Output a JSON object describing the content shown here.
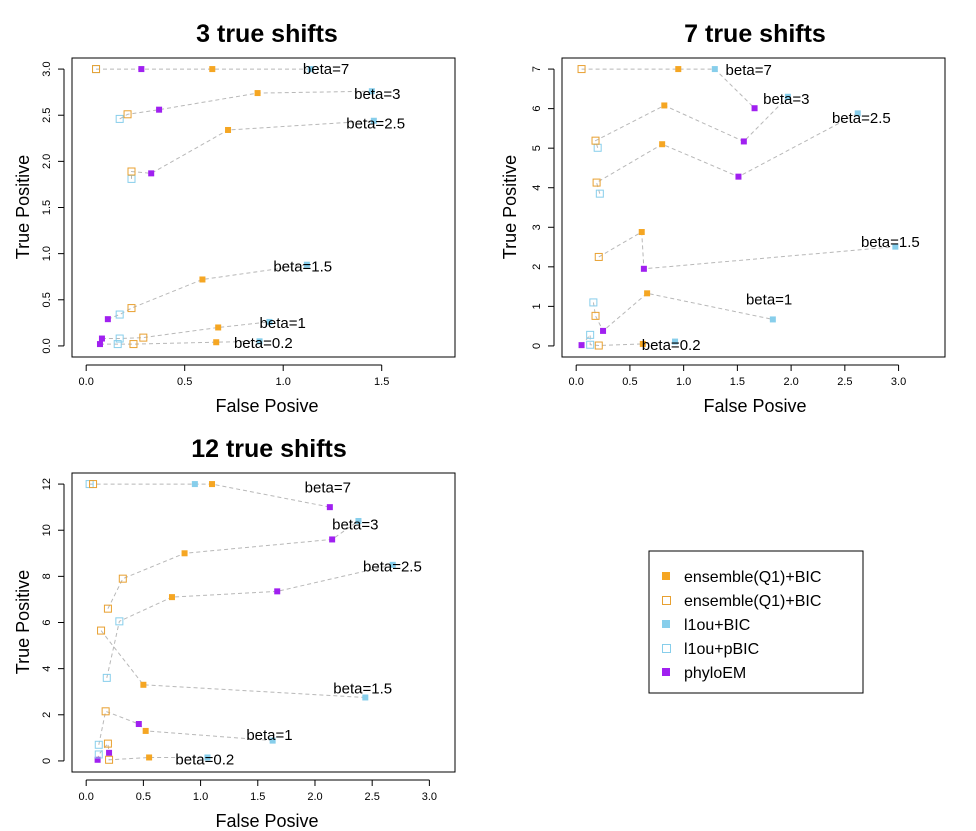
{
  "legend": {
    "entries": [
      {
        "label": "ensemble(Q1)+BIC",
        "marker": "filled",
        "color": "#F5A623"
      },
      {
        "label": "ensemble(Q1)+BIC",
        "marker": "open",
        "color": "#E8A030"
      },
      {
        "label": "l1ou+BIC",
        "marker": "filled",
        "color": "#87CEEB"
      },
      {
        "label": "l1ou+pBIC",
        "marker": "open",
        "color": "#87CEEB"
      },
      {
        "label": "phyloEM",
        "marker": "filled",
        "color": "#A020F0"
      }
    ]
  },
  "chart_data": [
    {
      "type": "scatter",
      "title": "3  true shifts",
      "xlabel": "False Posive",
      "ylabel": "True Positive",
      "xlim": [
        0,
        1.8
      ],
      "ylim": [
        0,
        3
      ],
      "xticks": [
        "0.0",
        "0.5",
        "1.0",
        "1.5"
      ],
      "xtick_values": [
        0,
        0.5,
        1.0,
        1.5
      ],
      "yticks": [
        "0.0",
        "0.5",
        "1.0",
        "1.5",
        "2.0",
        "2.5",
        "3.0"
      ],
      "ytick_values": [
        0,
        0.5,
        1.0,
        1.5,
        2.0,
        2.5,
        3.0
      ],
      "series": [
        {
          "name": "beta=7",
          "label_at": [
            1.1,
            3.0
          ],
          "points": [
            {
              "x": 0.05,
              "y": 3.0,
              "m": "l1ou_pbic"
            },
            {
              "x": 0.05,
              "y": 3.0,
              "m": "ens_open"
            },
            {
              "x": 0.28,
              "y": 3.0,
              "m": "phyloem"
            },
            {
              "x": 0.64,
              "y": 3.0,
              "m": "ens_filled"
            },
            {
              "x": 1.14,
              "y": 3.0,
              "m": "l1ou_bic"
            }
          ]
        },
        {
          "name": "beta=3",
          "label_at": [
            1.36,
            2.73
          ],
          "points": [
            {
              "x": 0.17,
              "y": 2.46,
              "m": "l1ou_pbic"
            },
            {
              "x": 0.21,
              "y": 2.51,
              "m": "ens_open"
            },
            {
              "x": 0.37,
              "y": 2.56,
              "m": "phyloem"
            },
            {
              "x": 0.87,
              "y": 2.74,
              "m": "ens_filled"
            },
            {
              "x": 1.45,
              "y": 2.76,
              "m": "l1ou_bic"
            }
          ]
        },
        {
          "name": "beta=2.5",
          "label_at": [
            1.32,
            2.41
          ],
          "points": [
            {
              "x": 0.23,
              "y": 1.81,
              "m": "l1ou_pbic"
            },
            {
              "x": 0.23,
              "y": 1.89,
              "m": "ens_open"
            },
            {
              "x": 0.33,
              "y": 1.87,
              "m": "phyloem"
            },
            {
              "x": 0.72,
              "y": 2.34,
              "m": "ens_filled"
            },
            {
              "x": 1.46,
              "y": 2.44,
              "m": "l1ou_bic"
            }
          ]
        },
        {
          "name": "beta=1.5",
          "label_at": [
            0.95,
            0.86
          ],
          "points": [
            {
              "x": 0.11,
              "y": 0.29,
              "m": "phyloem"
            },
            {
              "x": 0.17,
              "y": 0.34,
              "m": "l1ou_pbic"
            },
            {
              "x": 0.23,
              "y": 0.41,
              "m": "ens_open"
            },
            {
              "x": 0.59,
              "y": 0.72,
              "m": "ens_filled"
            },
            {
              "x": 1.12,
              "y": 0.88,
              "m": "l1ou_bic"
            }
          ]
        },
        {
          "name": "beta=1",
          "label_at": [
            0.88,
            0.25
          ],
          "points": [
            {
              "x": 0.08,
              "y": 0.08,
              "m": "phyloem"
            },
            {
              "x": 0.17,
              "y": 0.08,
              "m": "l1ou_pbic"
            },
            {
              "x": 0.29,
              "y": 0.09,
              "m": "ens_open"
            },
            {
              "x": 0.67,
              "y": 0.2,
              "m": "ens_filled"
            },
            {
              "x": 0.93,
              "y": 0.26,
              "m": "l1ou_bic"
            }
          ]
        },
        {
          "name": "beta=0.2",
          "label_at": [
            0.75,
            0.03
          ],
          "points": [
            {
              "x": 0.07,
              "y": 0.02,
              "m": "phyloem"
            },
            {
              "x": 0.16,
              "y": 0.02,
              "m": "l1ou_pbic"
            },
            {
              "x": 0.24,
              "y": 0.02,
              "m": "ens_open"
            },
            {
              "x": 0.66,
              "y": 0.04,
              "m": "ens_filled"
            },
            {
              "x": 0.88,
              "y": 0.05,
              "m": "l1ou_bic"
            }
          ]
        }
      ]
    },
    {
      "type": "scatter",
      "title": "7  true shifts",
      "xlabel": "False Posive",
      "ylabel": "True Positive",
      "xlim": [
        0,
        3.3
      ],
      "ylim": [
        0,
        7
      ],
      "xticks": [
        "0.0",
        "0.5",
        "1.0",
        "1.5",
        "2.0",
        "2.5",
        "3.0"
      ],
      "xtick_values": [
        0,
        0.5,
        1.0,
        1.5,
        2.0,
        2.5,
        3.0
      ],
      "yticks": [
        "0",
        "1",
        "2",
        "3",
        "4",
        "5",
        "6",
        "7"
      ],
      "ytick_values": [
        0,
        1,
        2,
        3,
        4,
        5,
        6,
        7
      ],
      "series": [
        {
          "name": "beta=7",
          "label_at": [
            1.39,
            6.98
          ],
          "points": [
            {
              "x": 0.05,
              "y": 7.0,
              "m": "ens_open"
            },
            {
              "x": 0.95,
              "y": 7.0,
              "m": "ens_filled"
            },
            {
              "x": 1.29,
              "y": 7.0,
              "m": "l1ou_bic"
            },
            {
              "x": 1.66,
              "y": 6.01,
              "m": "phyloem"
            }
          ]
        },
        {
          "name": "beta=3",
          "label_at": [
            1.74,
            6.24
          ],
          "points": [
            {
              "x": 0.2,
              "y": 5.01,
              "m": "l1ou_pbic"
            },
            {
              "x": 0.18,
              "y": 5.19,
              "m": "ens_open"
            },
            {
              "x": 0.82,
              "y": 6.08,
              "m": "ens_filled"
            },
            {
              "x": 1.56,
              "y": 5.17,
              "m": "phyloem"
            },
            {
              "x": 1.97,
              "y": 6.3,
              "m": "l1ou_bic"
            }
          ]
        },
        {
          "name": "beta=2.5",
          "label_at": [
            2.38,
            5.76
          ],
          "points": [
            {
              "x": 0.22,
              "y": 3.85,
              "m": "l1ou_pbic"
            },
            {
              "x": 0.19,
              "y": 4.13,
              "m": "ens_open"
            },
            {
              "x": 0.8,
              "y": 5.1,
              "m": "ens_filled"
            },
            {
              "x": 1.51,
              "y": 4.28,
              "m": "phyloem"
            },
            {
              "x": 2.62,
              "y": 5.88,
              "m": "l1ou_bic"
            }
          ]
        },
        {
          "name": "beta=1.5",
          "label_at": [
            2.65,
            2.63
          ],
          "points": [
            {
              "x": 0.21,
              "y": 2.25,
              "m": "ens_open"
            },
            {
              "x": 0.61,
              "y": 2.88,
              "m": "ens_filled"
            },
            {
              "x": 0.63,
              "y": 1.95,
              "m": "phyloem"
            },
            {
              "x": 2.97,
              "y": 2.51,
              "m": "l1ou_bic"
            }
          ]
        },
        {
          "name": "beta=1",
          "label_at": [
            1.58,
            1.18
          ],
          "points": [
            {
              "x": 0.16,
              "y": 1.1,
              "m": "l1ou_pbic"
            },
            {
              "x": 0.18,
              "y": 0.76,
              "m": "ens_open"
            },
            {
              "x": 0.25,
              "y": 0.38,
              "m": "phyloem"
            },
            {
              "x": 0.66,
              "y": 1.33,
              "m": "ens_filled"
            },
            {
              "x": 1.83,
              "y": 0.67,
              "m": "l1ou_bic"
            }
          ]
        },
        {
          "name": "beta=0.2",
          "label_at": [
            0.61,
            0.02
          ],
          "points": [
            {
              "x": 0.05,
              "y": 0.02,
              "m": "phyloem"
            },
            {
              "x": 0.13,
              "y": 0.28,
              "m": "l1ou_pbic"
            },
            {
              "x": 0.13,
              "y": 0.03,
              "m": "l1ou_pbic"
            },
            {
              "x": 0.21,
              "y": 0.01,
              "m": "ens_open"
            },
            {
              "x": 0.62,
              "y": 0.05,
              "m": "ens_filled"
            },
            {
              "x": 0.92,
              "y": 0.11,
              "m": "l1ou_bic"
            }
          ]
        }
      ]
    },
    {
      "type": "scatter",
      "title": "12  true shifts",
      "xlabel": "False Posive",
      "ylabel": "True Positive",
      "xlim": [
        0,
        3.1
      ],
      "ylim": [
        0,
        12
      ],
      "xticks": [
        "0.0",
        "0.5",
        "1.0",
        "1.5",
        "2.0",
        "2.5",
        "3.0"
      ],
      "xtick_values": [
        0,
        0.5,
        1.0,
        1.5,
        2.0,
        2.5,
        3.0
      ],
      "yticks": [
        "0",
        "2",
        "4",
        "6",
        "8",
        "10",
        "12"
      ],
      "ytick_values": [
        0,
        2,
        4,
        6,
        8,
        10,
        12
      ],
      "series": [
        {
          "name": "beta=7",
          "label_at": [
            1.91,
            11.85
          ],
          "points": [
            {
              "x": 0.03,
              "y": 12.0,
              "m": "l1ou_pbic"
            },
            {
              "x": 0.06,
              "y": 12.0,
              "m": "ens_open"
            },
            {
              "x": 0.95,
              "y": 12.0,
              "m": "l1ou_bic"
            },
            {
              "x": 1.1,
              "y": 12.0,
              "m": "ens_filled"
            },
            {
              "x": 2.13,
              "y": 11.0,
              "m": "phyloem"
            }
          ]
        },
        {
          "name": "beta=3",
          "label_at": [
            2.15,
            10.25
          ],
          "points": [
            {
              "x": 0.19,
              "y": 6.6,
              "m": "ens_open"
            },
            {
              "x": 0.32,
              "y": 7.9,
              "m": "ens_open"
            },
            {
              "x": 0.86,
              "y": 9.0,
              "m": "ens_filled"
            },
            {
              "x": 2.15,
              "y": 9.6,
              "m": "phyloem"
            },
            {
              "x": 2.38,
              "y": 10.4,
              "m": "l1ou_bic"
            }
          ]
        },
        {
          "name": "beta=2.5",
          "label_at": [
            2.42,
            8.42
          ],
          "points": [
            {
              "x": 0.18,
              "y": 3.6,
              "m": "l1ou_pbic"
            },
            {
              "x": 0.29,
              "y": 6.05,
              "m": "l1ou_pbic"
            },
            {
              "x": 0.75,
              "y": 7.1,
              "m": "ens_filled"
            },
            {
              "x": 1.67,
              "y": 7.35,
              "m": "phyloem"
            },
            {
              "x": 2.68,
              "y": 8.5,
              "m": "l1ou_bic"
            }
          ]
        },
        {
          "name": "beta=1.5",
          "label_at": [
            2.16,
            3.13
          ],
          "points": [
            {
              "x": 0.13,
              "y": 5.65,
              "m": "ens_open"
            },
            {
              "x": 0.5,
              "y": 3.3,
              "m": "ens_filled"
            },
            {
              "x": 2.44,
              "y": 2.75,
              "m": "l1ou_bic"
            }
          ]
        },
        {
          "name": "beta=1",
          "label_at": [
            1.4,
            1.12
          ],
          "points": [
            {
              "x": 0.11,
              "y": 0.7,
              "m": "l1ou_pbic"
            },
            {
              "x": 0.17,
              "y": 2.15,
              "m": "ens_open"
            },
            {
              "x": 0.46,
              "y": 1.6,
              "m": "phyloem"
            },
            {
              "x": 0.52,
              "y": 1.3,
              "m": "ens_filled"
            },
            {
              "x": 1.63,
              "y": 0.88,
              "m": "l1ou_bic"
            }
          ]
        },
        {
          "name": "beta=0.2",
          "label_at": [
            0.78,
            0.07
          ],
          "points": [
            {
              "x": 0.1,
              "y": 0.05,
              "m": "phyloem"
            },
            {
              "x": 0.11,
              "y": 0.28,
              "m": "l1ou_pbic"
            },
            {
              "x": 0.19,
              "y": 0.75,
              "m": "ens_open"
            },
            {
              "x": 0.2,
              "y": 0.35,
              "m": "phyloem"
            },
            {
              "x": 0.2,
              "y": 0.05,
              "m": "ens_open"
            },
            {
              "x": 0.55,
              "y": 0.15,
              "m": "ens_filled"
            },
            {
              "x": 1.06,
              "y": 0.15,
              "m": "l1ou_bic"
            }
          ]
        }
      ]
    }
  ]
}
